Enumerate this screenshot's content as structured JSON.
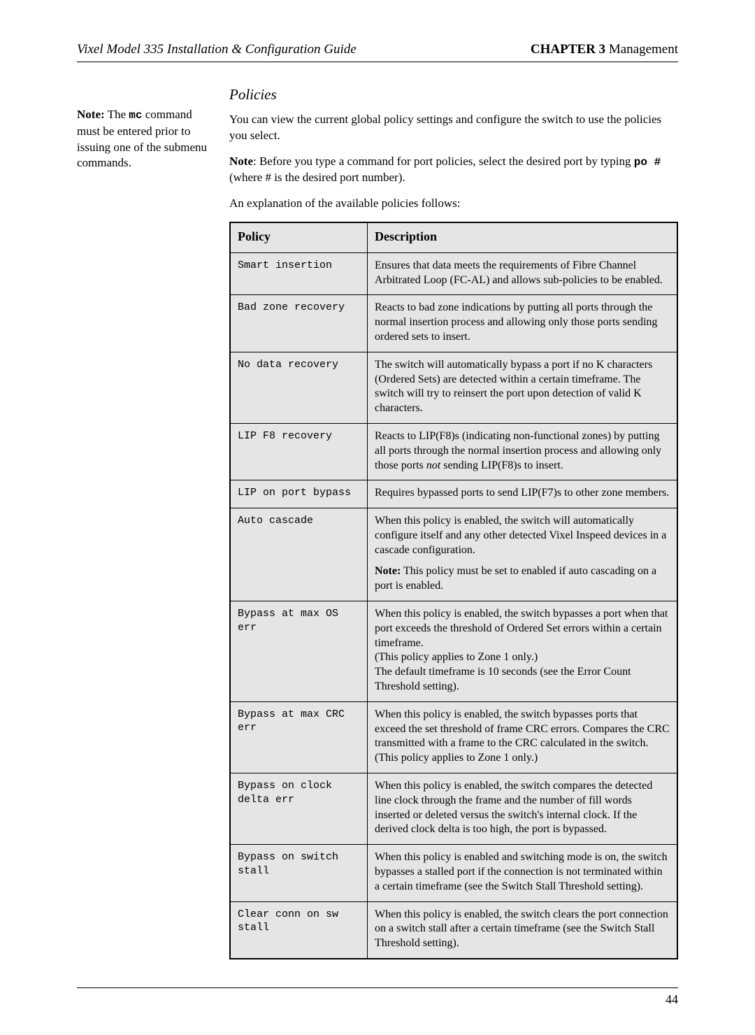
{
  "header": {
    "left": "Vixel Model 335 Installation & Configuration Guide",
    "chapter_label": "CHAPTER 3",
    "chapter_name": " Management"
  },
  "sidenote": {
    "strong": "Note:",
    "pre_mono": " The ",
    "mono": "mc",
    "post": " command must be entered prior to issuing one of the submenu commands."
  },
  "section_title": "Policies",
  "para1": "You can view the current global policy settings and configure the switch to use the policies you select.",
  "para2": {
    "strong": "Note",
    "after_strong": ": Before you type a command for port policies, select the desired port by typing ",
    "mono1": "po #",
    "after_mono1": " (where # is the desired port number)."
  },
  "para3": "An explanation of the available policies follows:",
  "table": {
    "head_policy": "Policy",
    "head_desc": "Description",
    "rows": [
      {
        "policy": "Smart insertion",
        "desc_html": "Ensures that data meets the requirements of Fibre Channel Arbitrated Loop (FC-AL) and allows sub-policies to be enabled."
      },
      {
        "policy": "Bad zone recovery",
        "desc_html": "Reacts to bad zone indications by putting all ports through the normal insertion process and allowing only those ports sending ordered sets to insert."
      },
      {
        "policy": "No data recovery",
        "desc_html": "The switch will automatically bypass a port if no K characters (Ordered Sets) are detected within a certain timeframe. The switch will try to reinsert the port upon detection of valid K characters."
      },
      {
        "policy": "LIP F8 recovery",
        "desc_html": "Reacts to LIP(F8)s (indicating non-functional zones) by putting all ports through the normal insertion process and allowing only those ports <i>not</i> sending LIP(F8)s to insert."
      },
      {
        "policy": "LIP on port bypass",
        "desc_html": "Requires bypassed ports to send LIP(F7)s to other zone members."
      },
      {
        "policy": "Auto cascade",
        "desc_html": "<p>When this policy is enabled, the switch will automatically configure itself and any other detected Vixel Inspeed devices in a cascade configuration.</p><p><b>Note:</b> This policy must be set to enabled if auto cascading on a port is enabled.</p>"
      },
      {
        "policy": "Bypass at max OS err",
        "desc_html": "When this policy is enabled, the switch bypasses a port when that port exceeds the threshold of Ordered Set errors within a certain timeframe.<br>(This policy applies to Zone 1 only.)<br>The default timeframe is 10 seconds (see the Error Count Threshold setting)."
      },
      {
        "policy": "Bypass at max CRC err",
        "desc_html": "When this policy is enabled, the switch bypasses ports that exceed the set threshold of frame CRC errors. Compares the CRC transmitted with a frame to the CRC calculated in the switch.<br>(This policy applies to Zone 1 only.)"
      },
      {
        "policy": "Bypass on clock delta err",
        "desc_html": "When this policy is enabled, the switch compares the detected line clock through the frame and the number of fill words inserted or deleted versus the switch's internal clock. If the derived clock delta is too high, the port is bypassed."
      },
      {
        "policy": "Bypass on switch stall",
        "desc_html": "When this policy is enabled and switching mode is on, the switch bypasses a stalled port if the connection is not terminated within a certain timeframe (see the Switch Stall Threshold setting)."
      },
      {
        "policy": "Clear conn on sw stall",
        "desc_html": "When this policy is enabled, the switch clears the port connection on a switch stall after a certain timeframe (see the Switch Stall Threshold setting)."
      }
    ]
  },
  "page_number": "44"
}
